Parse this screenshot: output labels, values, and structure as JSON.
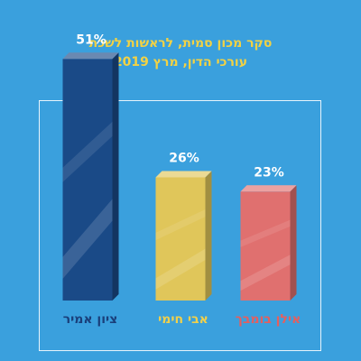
{
  "title": {
    "line1": "סקר מכון סמית, לראשות לשכת",
    "line2": "עורכי הדין, מרץ 2019"
  },
  "chart_data": {
    "type": "bar",
    "categories": [
      "ציון אמיר",
      "אבי חימי",
      "אילן בומבך"
    ],
    "values": [
      51,
      26,
      23
    ],
    "value_labels": [
      "51%",
      "26%",
      "23%"
    ],
    "unit": "%",
    "ylim": [
      0,
      60
    ],
    "grid": false,
    "colors": [
      "#1a4a87",
      "#e0c65a",
      "#e0706f"
    ],
    "label_colors": [
      "#1a3f7a",
      "#f0d04c",
      "#e45f5f"
    ]
  }
}
